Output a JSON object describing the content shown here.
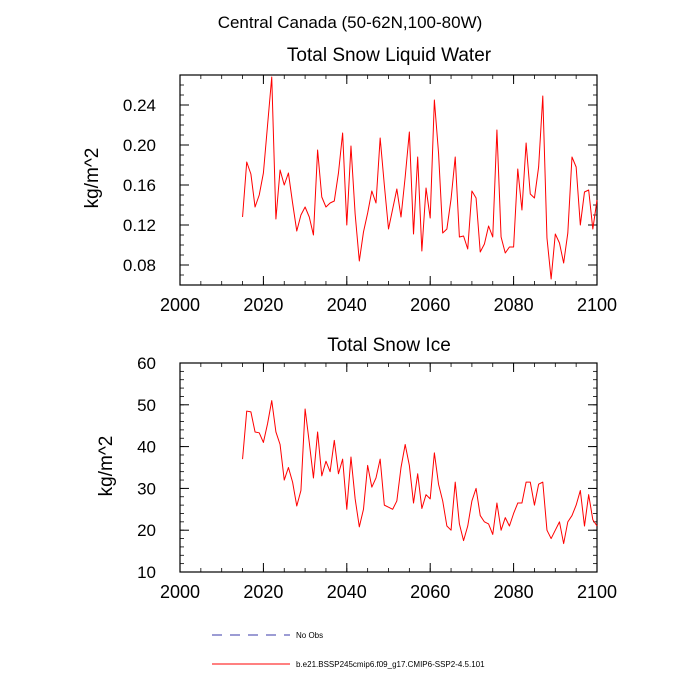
{
  "figure_title": "Central Canada (50-62N,100-80W)",
  "colors": {
    "model_line": "#ff0000",
    "obs_line": "#3a3aa8",
    "axis": "#000000"
  },
  "chart_data": [
    {
      "type": "line",
      "title": "Total Snow Liquid Water",
      "xlabel": "",
      "ylabel": "kg/m^2",
      "xlim": [
        2000,
        2100
      ],
      "ylim": [
        0.06,
        0.27
      ],
      "x_ticks": [
        2000,
        2020,
        2040,
        2060,
        2080,
        2100
      ],
      "x_tick_labels": [
        "2000",
        "2020",
        "2040",
        "2060",
        "2080",
        "2100"
      ],
      "y_ticks": [
        0.08,
        0.12,
        0.16,
        0.2,
        0.24
      ],
      "y_tick_labels": [
        "0.08",
        "0.12",
        "0.16",
        "0.20",
        "0.24"
      ],
      "x_minor_step": 5,
      "y_minor_step": 0.01,
      "grid": false,
      "series": [
        {
          "name": "b.e21.BSSP245cmip6.f09_g17.CMIP6-SSP2-4.5.101",
          "x_start": 2015,
          "x_step": 1,
          "values": [
            0.128,
            0.183,
            0.171,
            0.138,
            0.15,
            0.172,
            0.22,
            0.268,
            0.126,
            0.175,
            0.16,
            0.172,
            0.142,
            0.114,
            0.13,
            0.138,
            0.128,
            0.11,
            0.195,
            0.148,
            0.138,
            0.142,
            0.144,
            0.172,
            0.212,
            0.12,
            0.199,
            0.131,
            0.084,
            0.113,
            0.132,
            0.154,
            0.142,
            0.207,
            0.16,
            0.116,
            0.136,
            0.156,
            0.128,
            0.168,
            0.213,
            0.111,
            0.188,
            0.094,
            0.157,
            0.127,
            0.245,
            0.192,
            0.112,
            0.116,
            0.146,
            0.188,
            0.108,
            0.109,
            0.096,
            0.154,
            0.147,
            0.093,
            0.101,
            0.119,
            0.108,
            0.215,
            0.108,
            0.092,
            0.098,
            0.098,
            0.176,
            0.135,
            0.202,
            0.151,
            0.147,
            0.178,
            0.249,
            0.107,
            0.066,
            0.111,
            0.102,
            0.082,
            0.112,
            0.188,
            0.178,
            0.12,
            0.153,
            0.155,
            0.116,
            0.145
          ]
        }
      ]
    },
    {
      "type": "line",
      "title": "Total Snow Ice",
      "xlabel": "",
      "ylabel": "kg/m^2",
      "xlim": [
        2000,
        2100
      ],
      "ylim": [
        10,
        60
      ],
      "x_ticks": [
        2000,
        2020,
        2040,
        2060,
        2080,
        2100
      ],
      "x_tick_labels": [
        "2000",
        "2020",
        "2040",
        "2060",
        "2080",
        "2100"
      ],
      "y_ticks": [
        10,
        20,
        30,
        40,
        50,
        60
      ],
      "y_tick_labels": [
        "10",
        "20",
        "30",
        "40",
        "50",
        "60"
      ],
      "x_minor_step": 5,
      "y_minor_step": 2,
      "grid": false,
      "series": [
        {
          "name": "b.e21.BSSP245cmip6.f09_g17.CMIP6-SSP2-4.5.101",
          "x_start": 2015,
          "x_step": 1,
          "values": [
            37.0,
            48.5,
            48.3,
            43.5,
            43.3,
            41.0,
            45.5,
            51.0,
            43.5,
            40.5,
            32.0,
            35.0,
            31.5,
            25.8,
            29.5,
            49.0,
            41.0,
            32.5,
            43.5,
            33.0,
            36.5,
            34.0,
            41.5,
            33.5,
            37.0,
            25.0,
            37.5,
            27.5,
            20.8,
            25.0,
            35.5,
            30.3,
            32.5,
            37.0,
            26.0,
            25.5,
            25.0,
            27.0,
            35.0,
            40.5,
            35.5,
            26.5,
            33.5,
            25.2,
            28.5,
            27.5,
            38.5,
            31.0,
            27.0,
            21.0,
            20.0,
            31.5,
            21.5,
            17.5,
            21.0,
            27.0,
            30.0,
            23.5,
            22.0,
            21.5,
            19.0,
            26.5,
            20.0,
            23.0,
            21.0,
            24.0,
            26.5,
            26.5,
            31.5,
            31.5,
            26.0,
            31.0,
            31.5,
            20.0,
            18.0,
            20.0,
            22.0,
            16.8,
            22.0,
            23.5,
            26.0,
            29.5,
            21.0,
            28.5,
            22.5,
            21.0
          ]
        }
      ]
    }
  ],
  "legend": {
    "placement": "bottom",
    "items": [
      {
        "label": "No Obs",
        "style": "dashed",
        "color_key": "obs_line"
      },
      {
        "label": "b.e21.BSSP245cmip6.f09_g17.CMIP6-SSP2-4.5.101",
        "style": "solid",
        "color_key": "model_line"
      }
    ]
  }
}
